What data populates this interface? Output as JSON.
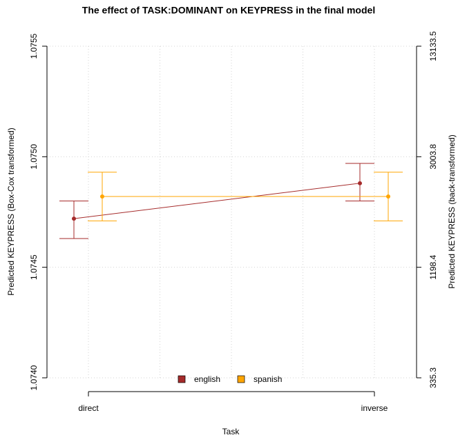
{
  "chart_data": {
    "type": "line",
    "title": "The effect of TASK:DOMINANT on KEYPRESS in the final model",
    "x_label": "Task",
    "y_label": "Predicted KEYPRESS (Box-Cox transformed)",
    "y2_label": "Predicted KEYPRESS (back-transformed)",
    "categories": [
      "direct",
      "inverse"
    ],
    "series": [
      {
        "name": "english",
        "color": "#a52a2a",
        "values": [
          1.07472,
          1.07488
        ],
        "upper": [
          1.0748,
          1.07497
        ],
        "lower": [
          1.07463,
          1.0748
        ]
      },
      {
        "name": "spanish",
        "color": "#ffa500",
        "values": [
          1.07482,
          1.07482
        ],
        "upper": [
          1.07493,
          1.07493
        ],
        "lower": [
          1.07471,
          1.07471
        ]
      }
    ],
    "ylim": [
      1.074,
      1.0755
    ],
    "yticks": [
      {
        "value": 1.074,
        "label": "1.0740"
      },
      1.0745,
      {
        "value": 1.075,
        "label": "1.0750"
      },
      1.0755
    ],
    "y2ticks": [
      335.3,
      1198.4,
      3003.8,
      13133.5
    ],
    "grid": true,
    "legend": "bottom"
  }
}
